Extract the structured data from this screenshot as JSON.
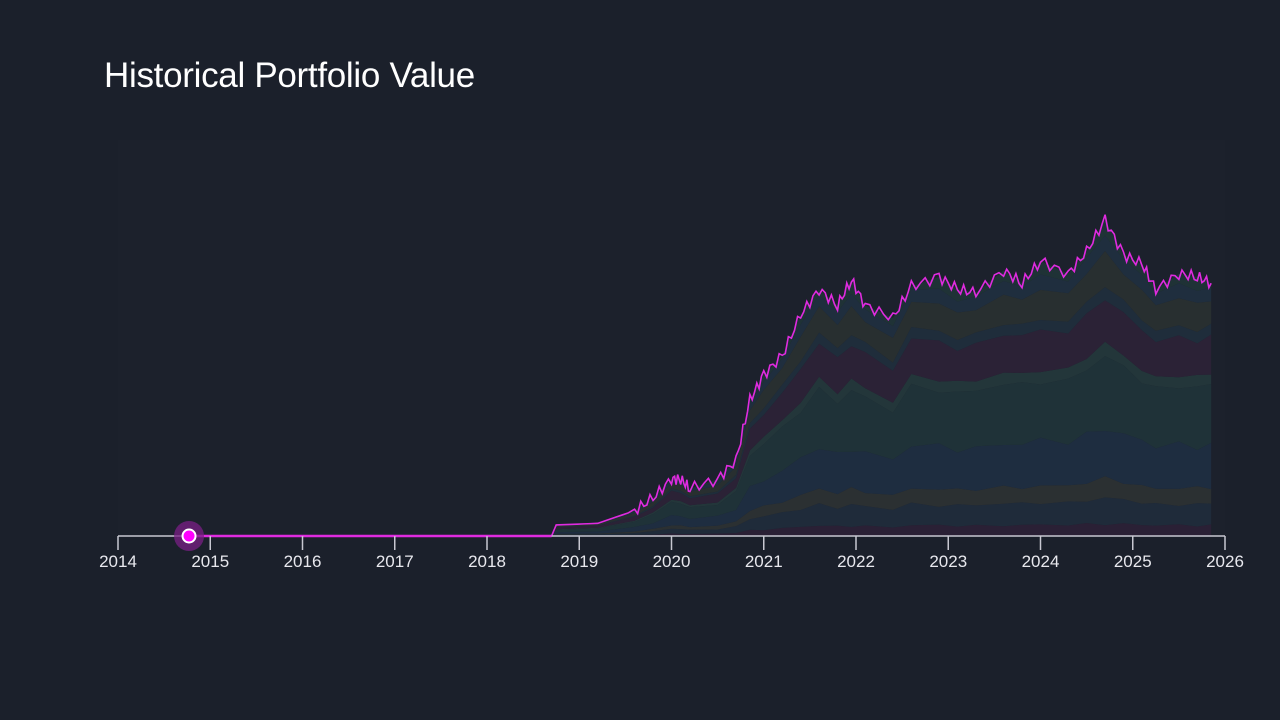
{
  "title": "Historical Portfolio Value",
  "chart_data": {
    "type": "area",
    "title": "Historical Portfolio Value",
    "xlabel": "",
    "ylabel": "",
    "x_ticks": [
      "2014",
      "2015",
      "2016",
      "2017",
      "2018",
      "2019",
      "2020",
      "2021",
      "2022",
      "2023",
      "2024",
      "2025",
      "2026"
    ],
    "xlim": [
      2014,
      2026
    ],
    "ylim": [
      0,
      100
    ],
    "y_axis_shown": false,
    "grid": false,
    "legend": "none",
    "line_color": "#e02be0",
    "marker": {
      "x": 2014.77,
      "y": 0,
      "color": "#ff00ff"
    },
    "total": {
      "x": [
        2014.77,
        2018.7,
        2018.75,
        2019.2,
        2019.6,
        2019.8,
        2020.0,
        2020.1,
        2020.2,
        2020.5,
        2020.7,
        2020.85,
        2021.0,
        2021.2,
        2021.4,
        2021.6,
        2021.8,
        2021.95,
        2022.1,
        2022.4,
        2022.6,
        2022.9,
        2023.1,
        2023.3,
        2023.6,
        2023.8,
        2024.0,
        2024.3,
        2024.5,
        2024.7,
        2024.9,
        2025.1,
        2025.25,
        2025.5,
        2025.7,
        2025.85
      ],
      "y": [
        0,
        0,
        3.5,
        4,
        8,
        12,
        18,
        18,
        15,
        18,
        24,
        43,
        51,
        57,
        70,
        78,
        73,
        81,
        73,
        69,
        79,
        82,
        78,
        77,
        84,
        80,
        87,
        83,
        90,
        100,
        89,
        86,
        78,
        83,
        82,
        80
      ]
    },
    "stack_series": [
      {
        "share": 0.04,
        "color": "#2a2035"
      },
      {
        "share": 0.08,
        "color": "#1f2b3a"
      },
      {
        "share": 0.06,
        "color": "#2b3032"
      },
      {
        "share": 0.16,
        "color": "#1e2d40"
      },
      {
        "share": 0.22,
        "color": "#1f3238"
      },
      {
        "share": 0.04,
        "color": "#23363a"
      },
      {
        "share": 0.14,
        "color": "#2b2236"
      },
      {
        "share": 0.04,
        "color": "#1f2d3b"
      },
      {
        "share": 0.1,
        "color": "#282f30"
      },
      {
        "share": 0.05,
        "color": "#1f2e3e"
      },
      {
        "share": 0.07,
        "color": "#1f3236"
      }
    ]
  }
}
